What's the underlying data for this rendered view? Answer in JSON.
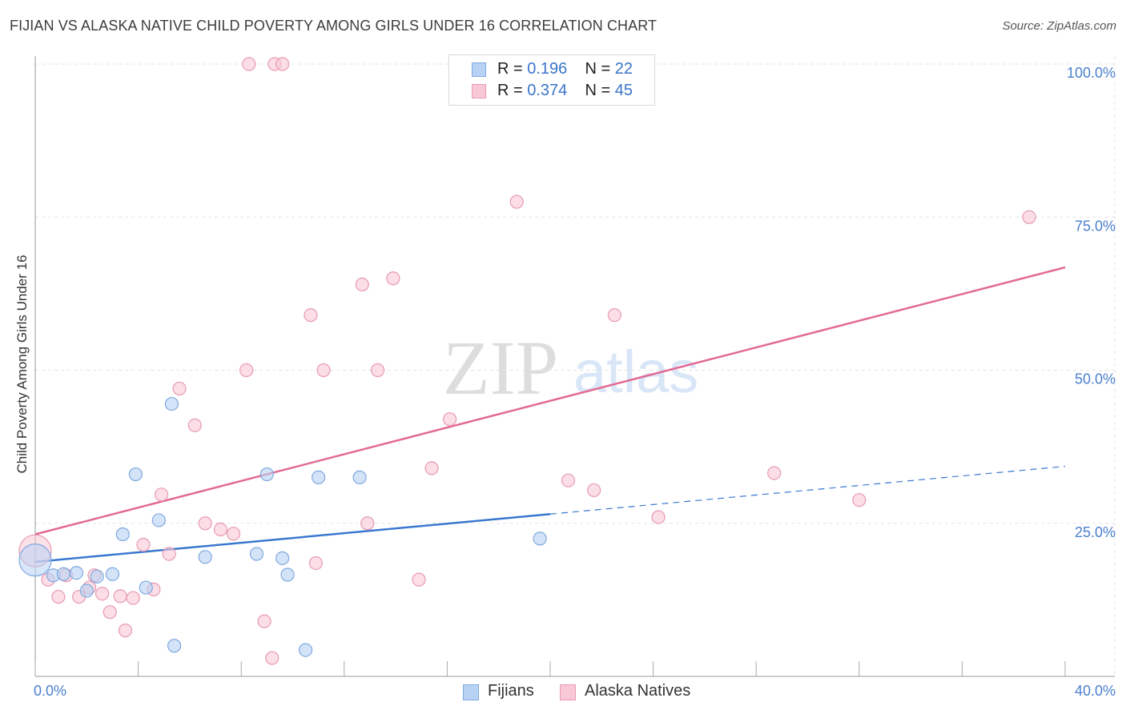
{
  "header": {
    "title": "FIJIAN VS ALASKA NATIVE CHILD POVERTY AMONG GIRLS UNDER 16 CORRELATION CHART",
    "source": "Source: ZipAtlas.com"
  },
  "watermark": {
    "zip": "ZIP",
    "atlas": "atlas"
  },
  "legend_top": [
    {
      "r_label": "R =",
      "r_value": "0.196",
      "n_label": "N =",
      "n_value": "22"
    },
    {
      "r_label": "R =",
      "r_value": "0.374",
      "n_label": "N =",
      "n_value": "45"
    }
  ],
  "legend_bottom": [
    "Fijians",
    "Alaska Natives"
  ],
  "colors": {
    "fijians_fill": "#b8d2f4",
    "fijians_stroke": "#7fa8df",
    "fijians_line": "#3a78cf",
    "alaska_fill": "#f8c8d6",
    "alaska_stroke": "#e89ab2",
    "alaska_line": "#e36a94",
    "axis_label": "#4a7fd0",
    "grid": "#e3e3e3"
  },
  "chart_data": {
    "type": "scatter",
    "title": "FIJIAN VS ALASKA NATIVE CHILD POVERTY AMONG GIRLS UNDER 16 CORRELATION CHART",
    "xlabel": "",
    "ylabel": "Child Poverty Among Girls Under 16",
    "xlim": [
      0,
      40
    ],
    "ylim": [
      0,
      102
    ],
    "x_tick_labels": [
      "0.0%",
      "40.0%"
    ],
    "y_ticks": [
      25,
      50,
      75,
      100
    ],
    "y_tick_labels": [
      "25.0%",
      "50.0%",
      "75.0%",
      "100.0%"
    ],
    "grid": true,
    "series": [
      {
        "name": "Fijians",
        "R": 0.196,
        "N": 22,
        "points": [
          [
            0.0,
            19.0
          ],
          [
            0.7,
            16.5
          ],
          [
            1.1,
            16.7
          ],
          [
            1.6,
            16.9
          ],
          [
            2.0,
            14.0
          ],
          [
            2.4,
            16.3
          ],
          [
            3.0,
            16.7
          ],
          [
            3.4,
            23.2
          ],
          [
            3.9,
            33.0
          ],
          [
            4.3,
            14.5
          ],
          [
            4.8,
            25.5
          ],
          [
            5.3,
            44.5
          ],
          [
            5.4,
            5.0
          ],
          [
            6.6,
            19.5
          ],
          [
            8.6,
            20.0
          ],
          [
            9.0,
            33.0
          ],
          [
            9.6,
            19.3
          ],
          [
            9.8,
            16.6
          ],
          [
            10.5,
            4.3
          ],
          [
            11.0,
            32.5
          ],
          [
            12.6,
            32.5
          ],
          [
            19.6,
            22.5
          ]
        ],
        "trend": {
          "x0": 0,
          "y0": 18.7,
          "x1": 20.0,
          "y1": 26.5,
          "dash_to_x": 40,
          "dash_to_y": 34.3
        }
      },
      {
        "name": "Alaska Natives",
        "R": 0.374,
        "N": 45,
        "points": [
          [
            0.0,
            20.5
          ],
          [
            0.5,
            15.8
          ],
          [
            0.9,
            13.0
          ],
          [
            1.2,
            16.5
          ],
          [
            1.7,
            13.0
          ],
          [
            2.1,
            14.5
          ],
          [
            2.3,
            16.5
          ],
          [
            2.6,
            13.5
          ],
          [
            2.9,
            10.5
          ],
          [
            3.3,
            13.1
          ],
          [
            3.5,
            7.5
          ],
          [
            3.8,
            12.8
          ],
          [
            4.2,
            21.5
          ],
          [
            4.6,
            14.2
          ],
          [
            4.9,
            29.7
          ],
          [
            5.2,
            20.0
          ],
          [
            5.6,
            47.0
          ],
          [
            6.2,
            41.0
          ],
          [
            6.6,
            25.0
          ],
          [
            7.2,
            24.0
          ],
          [
            7.7,
            23.3
          ],
          [
            8.2,
            50.0
          ],
          [
            8.3,
            100.0
          ],
          [
            8.9,
            9.0
          ],
          [
            9.2,
            3.0
          ],
          [
            9.3,
            100.0
          ],
          [
            9.6,
            100.0
          ],
          [
            10.7,
            59.0
          ],
          [
            10.9,
            18.5
          ],
          [
            11.2,
            50.0
          ],
          [
            12.7,
            64.0
          ],
          [
            12.9,
            25.0
          ],
          [
            13.3,
            50.0
          ],
          [
            13.9,
            65.0
          ],
          [
            14.9,
            15.8
          ],
          [
            15.4,
            34.0
          ],
          [
            16.1,
            42.0
          ],
          [
            18.7,
            77.5
          ],
          [
            20.7,
            32.0
          ],
          [
            21.7,
            30.4
          ],
          [
            22.5,
            59.0
          ],
          [
            24.2,
            26.0
          ],
          [
            28.7,
            33.2
          ],
          [
            32.0,
            28.8
          ],
          [
            38.6,
            75.0
          ]
        ],
        "trend": {
          "x0": 0,
          "y0": 23.2,
          "x1": 40,
          "y1": 66.8
        }
      }
    ]
  }
}
